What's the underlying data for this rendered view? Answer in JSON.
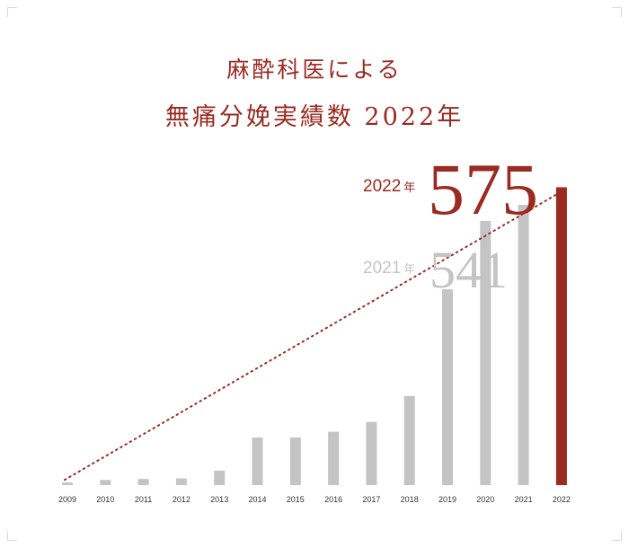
{
  "title": {
    "line1": "麻酔科医による",
    "line2": "無痛分娩実績数 2022年"
  },
  "highlights": {
    "current": {
      "year_label": "2022",
      "unit": "年",
      "value": "575"
    },
    "previous": {
      "year_label": "2021",
      "unit": "年",
      "value": "541"
    }
  },
  "colors": {
    "accent": "#9a2a22",
    "bar": "#c4c4c4",
    "highlight_bar": "#9a2a22",
    "axis_label": "#333333",
    "trend_line": "#9a2a22"
  },
  "chart_data": {
    "type": "bar",
    "categories": [
      "2009",
      "2010",
      "2011",
      "2012",
      "2013",
      "2014",
      "2015",
      "2016",
      "2017",
      "2018",
      "2019",
      "2020",
      "2021",
      "2022"
    ],
    "values": [
      5,
      10,
      12,
      13,
      28,
      92,
      92,
      103,
      122,
      172,
      378,
      510,
      541,
      575
    ],
    "highlight_category": "2022",
    "trend_line": {
      "from": "2009",
      "to": "2022",
      "style": "dotted"
    },
    "xlabel": "",
    "ylabel": "",
    "ylim": [
      0,
      600
    ],
    "grid": false,
    "legend": "none"
  }
}
